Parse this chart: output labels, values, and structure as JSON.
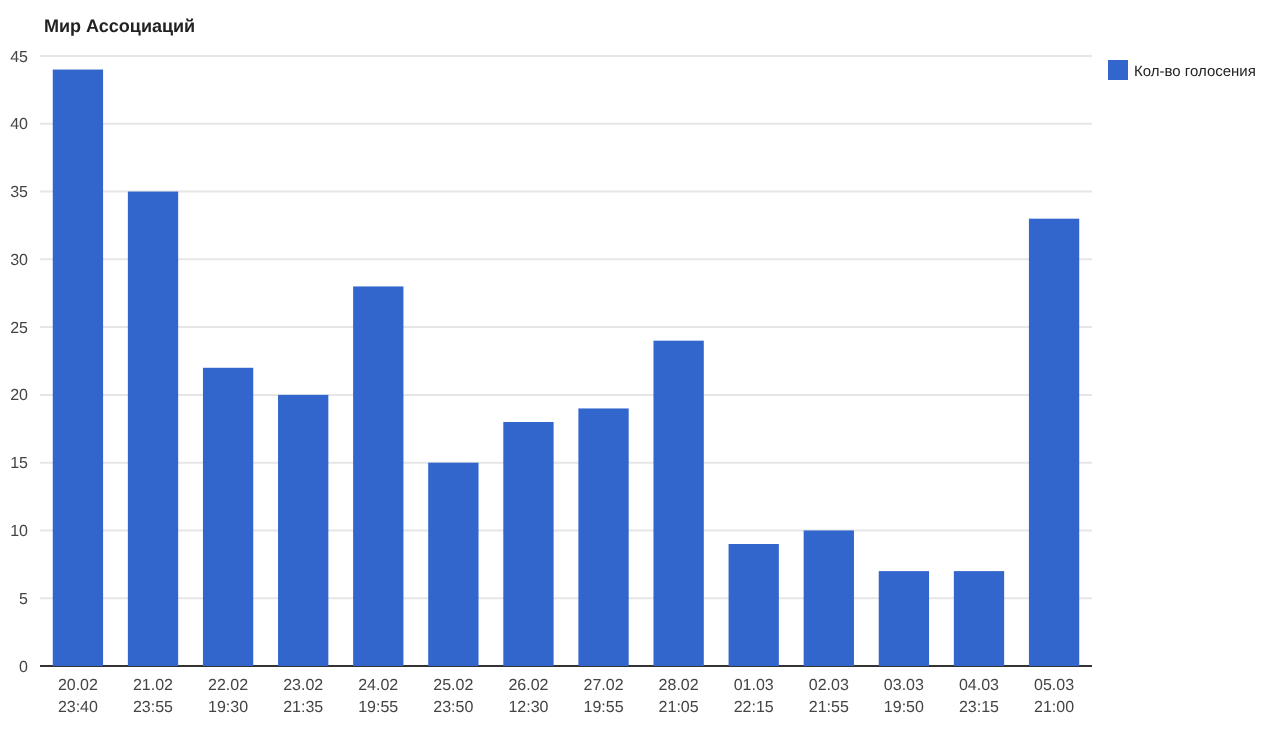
{
  "chart_data": {
    "type": "bar",
    "title": "Мир Ассоциаций",
    "categories": [
      "20.02\n23:40",
      "21.02\n23:55",
      "22.02\n19:30",
      "23.02\n21:35",
      "24.02\n19:55",
      "25.02\n23:50",
      "26.02\n12:30",
      "27.02\n19:55",
      "28.02\n21:05",
      "01.03\n22:15",
      "02.03\n21:55",
      "03.03\n19:50",
      "04.03\n23:15",
      "05.03\n21:00"
    ],
    "series": [
      {
        "name": "Кол-во голосения",
        "color": "#3366cc",
        "values": [
          44,
          35,
          22,
          20,
          28,
          15,
          18,
          19,
          24,
          9,
          10,
          7,
          7,
          33
        ]
      }
    ],
    "ylim": [
      0,
      45
    ],
    "yticks": [
      0,
      5,
      10,
      15,
      20,
      25,
      30,
      35,
      40,
      45
    ],
    "grid": "y",
    "legend": "top right"
  }
}
